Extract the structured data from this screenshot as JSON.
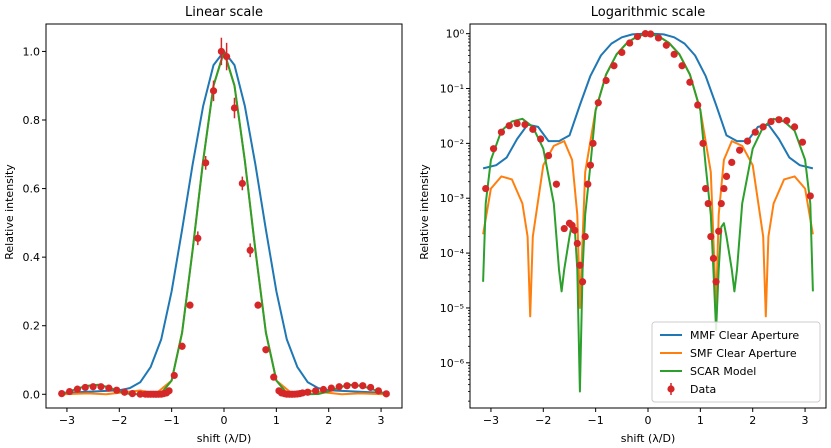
{
  "chart_data": [
    {
      "type": "line",
      "title": "Linear scale",
      "xlabel": "shift (λ/D)",
      "ylabel": "Relative intensity",
      "xlim": [
        -3.4,
        3.4
      ],
      "ylim": [
        -0.04,
        1.08
      ],
      "yscale": "linear",
      "xticks": [
        -3,
        -2,
        -1,
        0,
        1,
        2,
        3
      ],
      "xtick_labels": [
        "−3",
        "−2",
        "−1",
        "0",
        "1",
        "2",
        "3"
      ],
      "yticks": [
        0,
        0.2,
        0.4,
        0.6,
        0.8,
        1.0
      ],
      "ytick_labels": [
        "0.0",
        "0.2",
        "0.4",
        "0.6",
        "0.8",
        "1.0"
      ],
      "series": [
        {
          "name": "MMF Clear Aperture",
          "color": "#1f77b4",
          "x": [
            -3.1,
            -2.8,
            -2.4,
            -2.0,
            -1.8,
            -1.6,
            -1.4,
            -1.2,
            -1.0,
            -0.8,
            -0.6,
            -0.4,
            -0.2,
            0.0,
            0.2,
            0.4,
            0.6,
            0.8,
            1.0,
            1.2,
            1.4,
            1.6,
            1.8,
            2.0,
            2.4,
            2.8,
            3.1
          ],
          "y": [
            0.004,
            0.006,
            0.009,
            0.012,
            0.018,
            0.035,
            0.08,
            0.16,
            0.3,
            0.48,
            0.67,
            0.84,
            0.96,
            1.0,
            0.96,
            0.84,
            0.67,
            0.48,
            0.3,
            0.16,
            0.08,
            0.035,
            0.018,
            0.012,
            0.009,
            0.006,
            0.004
          ]
        },
        {
          "name": "SMF Clear Aperture",
          "color": "#ff7f0e",
          "x": [
            -3.1,
            -2.6,
            -2.25,
            -1.9,
            -1.6,
            -1.3,
            -1.0,
            -0.8,
            -0.6,
            -0.4,
            -0.2,
            0.0,
            0.2,
            0.4,
            0.6,
            0.8,
            1.0,
            1.3,
            1.6,
            1.9,
            2.25,
            2.6,
            3.1
          ],
          "y": [
            0.0002,
            0.0025,
            1e-05,
            0.006,
            0.011,
            0.002,
            0.04,
            0.18,
            0.42,
            0.68,
            0.9,
            1.0,
            0.9,
            0.68,
            0.42,
            0.18,
            0.04,
            0.002,
            0.011,
            0.006,
            1e-05,
            0.0025,
            0.0002
          ]
        },
        {
          "name": "SCAR Model",
          "color": "#2ca02c",
          "x": [
            -3.15,
            -3.0,
            -2.8,
            -2.6,
            -2.4,
            -2.2,
            -2.0,
            -1.8,
            -1.6,
            -1.4,
            -1.2,
            -1.0,
            -0.8,
            -0.6,
            -0.4,
            -0.2,
            0.0,
            0.2,
            0.4,
            0.6,
            0.8,
            1.0,
            1.2,
            1.4,
            1.6,
            1.8,
            2.0,
            2.2,
            2.4,
            2.6,
            2.8,
            3.0,
            3.15
          ],
          "y": [
            3e-05,
            0.005,
            0.017,
            0.025,
            0.028,
            0.02,
            0.008,
            0.0008,
            0.0002,
            0.0003,
            0.003,
            0.04,
            0.18,
            0.42,
            0.68,
            0.9,
            1.0,
            0.9,
            0.68,
            0.42,
            0.18,
            0.04,
            0.003,
            0.0003,
            0.0002,
            0.0008,
            0.008,
            0.02,
            0.028,
            0.025,
            0.017,
            0.005,
            3e-05
          ]
        }
      ],
      "data_points": {
        "name": "Data",
        "color": "#d62728",
        "x": [
          -3.1,
          -2.95,
          -2.8,
          -2.65,
          -2.5,
          -2.35,
          -2.2,
          -2.05,
          -1.9,
          -1.75,
          -1.6,
          -1.5,
          -1.45,
          -1.4,
          -1.35,
          -1.3,
          -1.25,
          -1.2,
          -1.15,
          -1.1,
          -1.05,
          -0.95,
          -0.8,
          -0.65,
          -0.5,
          -0.35,
          -0.2,
          -0.05,
          0.05,
          0.2,
          0.35,
          0.5,
          0.65,
          0.8,
          0.95,
          1.05,
          1.1,
          1.15,
          1.2,
          1.25,
          1.3,
          1.35,
          1.4,
          1.45,
          1.5,
          1.6,
          1.75,
          1.9,
          2.05,
          2.2,
          2.35,
          2.5,
          2.65,
          2.8,
          2.95,
          3.1
        ],
        "y": [
          0.002,
          0.008,
          0.015,
          0.02,
          0.022,
          0.022,
          0.018,
          0.012,
          0.006,
          0.002,
          0.0003,
          0.0003,
          0.0002,
          0.00015,
          7e-05,
          3e-05,
          8e-05,
          0.0003,
          0.002,
          0.004,
          0.01,
          0.055,
          0.14,
          0.26,
          0.455,
          0.675,
          0.885,
          1.0,
          0.985,
          0.835,
          0.615,
          0.42,
          0.26,
          0.13,
          0.05,
          0.01,
          0.004,
          0.002,
          0.0003,
          8e-05,
          3e-05,
          0.0003,
          0.0008,
          0.002,
          0.004,
          0.006,
          0.01,
          0.014,
          0.018,
          0.022,
          0.025,
          0.026,
          0.025,
          0.02,
          0.01,
          0.0013
        ],
        "yerr": [
          0,
          0,
          0,
          0,
          0,
          0,
          0,
          0,
          0,
          0,
          0,
          0,
          0,
          0,
          0,
          0,
          0,
          0,
          0,
          0,
          0,
          0,
          0.01,
          0.01,
          0.02,
          0.02,
          0.03,
          0.04,
          0.04,
          0.03,
          0.02,
          0.02,
          0.01,
          0.01,
          0,
          0,
          0,
          0,
          0,
          0,
          0,
          0,
          0,
          0,
          0,
          0,
          0,
          0,
          0,
          0,
          0,
          0,
          0,
          0,
          0,
          0
        ]
      }
    },
    {
      "type": "line",
      "title": "Logarithmic scale",
      "xlabel": "shift (λ/D)",
      "ylabel": "Relative intensity",
      "xlim": [
        -3.4,
        3.4
      ],
      "ylim": [
        1.5e-07,
        1.5
      ],
      "yscale": "log",
      "xticks": [
        -3,
        -2,
        -1,
        0,
        1,
        2,
        3
      ],
      "xtick_labels": [
        "−3",
        "−2",
        "−1",
        "0",
        "1",
        "2",
        "3"
      ],
      "yticks": [
        1e-06,
        1e-05,
        0.0001,
        0.001,
        0.01,
        0.1,
        1
      ],
      "ytick_labels": [
        "10⁻⁶",
        "10⁻⁵",
        "10⁻⁴",
        "10⁻³",
        "10⁻²",
        "10⁻¹",
        "10⁰"
      ],
      "legend": {
        "placement": "lower-right",
        "entries": [
          "MMF Clear Aperture",
          "SMF Clear Aperture",
          "SCAR Model",
          "Data"
        ]
      },
      "series": [
        {
          "name": "MMF Clear Aperture",
          "color": "#1f77b4",
          "x": [
            -3.15,
            -2.9,
            -2.7,
            -2.5,
            -2.3,
            -2.1,
            -1.9,
            -1.7,
            -1.5,
            -1.3,
            -1.1,
            -0.9,
            -0.7,
            -0.5,
            -0.3,
            -0.1,
            0.0,
            0.1,
            0.3,
            0.5,
            0.7,
            0.9,
            1.1,
            1.3,
            1.5,
            1.7,
            1.9,
            2.1,
            2.3,
            2.5,
            2.7,
            2.9,
            3.15
          ],
          "y": [
            0.0035,
            0.004,
            0.0055,
            0.012,
            0.022,
            0.02,
            0.011,
            0.011,
            0.014,
            0.05,
            0.17,
            0.4,
            0.66,
            0.86,
            0.97,
            1.0,
            1.0,
            1.0,
            0.97,
            0.86,
            0.66,
            0.4,
            0.17,
            0.05,
            0.014,
            0.011,
            0.011,
            0.02,
            0.022,
            0.012,
            0.0055,
            0.004,
            0.0035
          ]
        },
        {
          "name": "SMF Clear Aperture",
          "color": "#ff7f0e",
          "x": [
            -3.15,
            -3.0,
            -2.8,
            -2.6,
            -2.4,
            -2.3,
            -2.25,
            -2.2,
            -2.0,
            -1.8,
            -1.6,
            -1.45,
            -1.35,
            -1.3,
            -1.2,
            -1.0,
            -0.8,
            -0.6,
            -0.4,
            -0.2,
            0.0,
            0.2,
            0.4,
            0.6,
            0.8,
            1.0,
            1.2,
            1.3,
            1.35,
            1.45,
            1.6,
            1.8,
            2.0,
            2.2,
            2.25,
            2.3,
            2.4,
            2.6,
            2.8,
            3.0,
            3.15
          ],
          "y": [
            0.00022,
            0.0015,
            0.0025,
            0.0022,
            0.0008,
            0.0002,
            7e-06,
            0.0002,
            0.004,
            0.009,
            0.011,
            0.005,
            0.0005,
            1e-05,
            0.003,
            0.04,
            0.18,
            0.42,
            0.68,
            0.9,
            1.0,
            0.9,
            0.68,
            0.42,
            0.18,
            0.04,
            0.003,
            1e-05,
            0.0005,
            0.005,
            0.011,
            0.009,
            0.004,
            0.0002,
            7e-06,
            0.0002,
            0.0008,
            0.0022,
            0.0025,
            0.0015,
            0.00022
          ]
        },
        {
          "name": "SCAR Model",
          "color": "#2ca02c",
          "x": [
            -3.15,
            -3.1,
            -3.0,
            -2.8,
            -2.6,
            -2.4,
            -2.2,
            -2.0,
            -1.8,
            -1.7,
            -1.65,
            -1.6,
            -1.5,
            -1.45,
            -1.4,
            -1.35,
            -1.3,
            -1.25,
            -1.2,
            -1.1,
            -1.0,
            -0.8,
            -0.6,
            -0.4,
            -0.2,
            0.0,
            0.2,
            0.4,
            0.6,
            0.8,
            1.0,
            1.1,
            1.2,
            1.25,
            1.3,
            1.35,
            1.4,
            1.45,
            1.5,
            1.6,
            1.65,
            1.7,
            1.8,
            2.0,
            2.2,
            2.4,
            2.6,
            2.8,
            3.0,
            3.1,
            3.15
          ],
          "y": [
            3e-05,
            0.0008,
            0.005,
            0.017,
            0.025,
            0.028,
            0.02,
            0.008,
            0.0008,
            5e-05,
            2e-05,
            5e-05,
            0.0002,
            0.00035,
            0.0003,
            5e-05,
            3e-07,
            5e-05,
            0.0005,
            0.004,
            0.04,
            0.18,
            0.42,
            0.68,
            0.9,
            1.0,
            0.9,
            0.68,
            0.42,
            0.18,
            0.04,
            0.004,
            0.0005,
            5e-05,
            4e-06,
            5e-05,
            0.0003,
            0.00035,
            0.0002,
            5e-05,
            2e-05,
            5e-05,
            0.0008,
            0.008,
            0.02,
            0.028,
            0.025,
            0.017,
            0.005,
            0.0008,
            2e-05
          ]
        }
      ],
      "data_points": {
        "name": "Data",
        "color": "#d62728",
        "x": [
          -3.1,
          -2.95,
          -2.8,
          -2.65,
          -2.5,
          -2.35,
          -2.2,
          -2.05,
          -1.9,
          -1.75,
          -1.6,
          -1.5,
          -1.45,
          -1.4,
          -1.35,
          -1.3,
          -1.25,
          -1.2,
          -1.15,
          -1.1,
          -1.05,
          -0.95,
          -0.8,
          -0.65,
          -0.5,
          -0.35,
          -0.2,
          -0.05,
          0.05,
          0.2,
          0.35,
          0.5,
          0.65,
          0.8,
          0.95,
          1.05,
          1.1,
          1.15,
          1.2,
          1.25,
          1.3,
          1.35,
          1.4,
          1.45,
          1.5,
          1.6,
          1.75,
          1.9,
          2.05,
          2.2,
          2.35,
          2.5,
          2.65,
          2.8,
          2.95,
          3.1
        ],
        "y": [
          0.0015,
          0.008,
          0.016,
          0.021,
          0.023,
          0.022,
          0.018,
          0.012,
          0.006,
          0.0018,
          0.00028,
          0.00035,
          0.00032,
          0.00026,
          0.00015,
          6e-05,
          3e-05,
          0.0002,
          0.0018,
          0.004,
          0.01,
          0.055,
          0.14,
          0.26,
          0.455,
          0.675,
          0.885,
          1.0,
          0.985,
          0.835,
          0.615,
          0.42,
          0.26,
          0.13,
          0.05,
          0.01,
          0.0015,
          0.0008,
          0.0002,
          8e-05,
          3e-05,
          0.00025,
          0.0008,
          0.0015,
          0.0025,
          0.0045,
          0.0075,
          0.011,
          0.016,
          0.02,
          0.025,
          0.027,
          0.026,
          0.02,
          0.0105,
          0.0011
        ]
      }
    }
  ]
}
